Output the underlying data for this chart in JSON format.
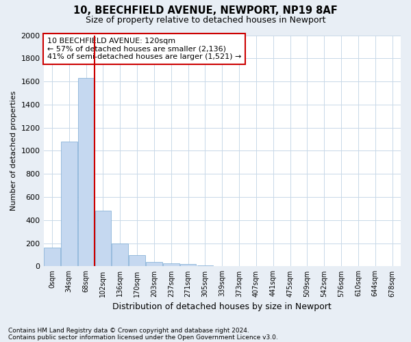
{
  "title1": "10, BEECHFIELD AVENUE, NEWPORT, NP19 8AF",
  "title2": "Size of property relative to detached houses in Newport",
  "xlabel": "Distribution of detached houses by size in Newport",
  "ylabel": "Number of detached properties",
  "categories": [
    "0sqm",
    "34sqm",
    "68sqm",
    "102sqm",
    "136sqm",
    "170sqm",
    "203sqm",
    "237sqm",
    "271sqm",
    "305sqm",
    "339sqm",
    "373sqm",
    "407sqm",
    "441sqm",
    "475sqm",
    "509sqm",
    "542sqm",
    "576sqm",
    "610sqm",
    "644sqm",
    "678sqm"
  ],
  "values": [
    165,
    1080,
    1630,
    480,
    200,
    100,
    40,
    25,
    20,
    10,
    0,
    0,
    0,
    0,
    0,
    0,
    0,
    0,
    0,
    0,
    0
  ],
  "bar_color": "#c5d8f0",
  "bar_edge_color": "#8ab4d8",
  "vline_x": 2.5,
  "vline_color": "#cc0000",
  "annotation_line1": "10 BEECHFIELD AVENUE: 120sqm",
  "annotation_line2": "← 57% of detached houses are smaller (2,136)",
  "annotation_line3": "41% of semi-detached houses are larger (1,521) →",
  "annotation_box_edge": "#cc0000",
  "ylim": [
    0,
    2000
  ],
  "yticks": [
    0,
    200,
    400,
    600,
    800,
    1000,
    1200,
    1400,
    1600,
    1800,
    2000
  ],
  "footnote1": "Contains HM Land Registry data © Crown copyright and database right 2024.",
  "footnote2": "Contains public sector information licensed under the Open Government Licence v3.0.",
  "bg_color": "#e8eef5",
  "plot_bg_color": "#ffffff",
  "grid_color": "#c8d8e8"
}
